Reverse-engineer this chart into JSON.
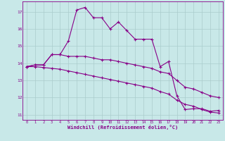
{
  "bg_color": "#c8e8e8",
  "line_color": "#880088",
  "grid_color": "#aacccc",
  "xlabel": "Windchill (Refroidissement éolien,°C)",
  "xlabel_color": "#880088",
  "tick_color": "#880088",
  "ylim": [
    10.7,
    17.6
  ],
  "yticks": [
    11,
    12,
    13,
    14,
    15,
    16,
    17
  ],
  "xlim": [
    -0.5,
    23.5
  ],
  "xticks": [
    0,
    1,
    2,
    3,
    4,
    5,
    6,
    7,
    8,
    9,
    10,
    11,
    12,
    13,
    14,
    15,
    16,
    17,
    18,
    19,
    20,
    21,
    22,
    23
  ],
  "series1_x": [
    0,
    1,
    2,
    3,
    4,
    5,
    6,
    7,
    8,
    9,
    10,
    11,
    12,
    13,
    14,
    15,
    16,
    17,
    18,
    19,
    20,
    21,
    22,
    23
  ],
  "series1_y": [
    13.8,
    13.9,
    13.9,
    14.5,
    14.5,
    15.3,
    17.1,
    17.25,
    16.65,
    16.65,
    16.0,
    16.4,
    15.9,
    15.4,
    15.4,
    15.4,
    13.8,
    14.1,
    12.1,
    11.3,
    11.35,
    11.35,
    11.2,
    11.25
  ],
  "series2_x": [
    0,
    1,
    2,
    3,
    4,
    5,
    6,
    7,
    8,
    9,
    10,
    11,
    12,
    13,
    14,
    15,
    16,
    17,
    18,
    19,
    20,
    21,
    22,
    23
  ],
  "series2_y": [
    13.8,
    13.9,
    13.9,
    14.5,
    14.5,
    14.4,
    14.4,
    14.4,
    14.3,
    14.2,
    14.2,
    14.1,
    14.0,
    13.9,
    13.8,
    13.7,
    13.5,
    13.4,
    13.0,
    12.6,
    12.5,
    12.3,
    12.1,
    12.0
  ],
  "series3_x": [
    0,
    1,
    2,
    3,
    4,
    5,
    6,
    7,
    8,
    9,
    10,
    11,
    12,
    13,
    14,
    15,
    16,
    17,
    18,
    19,
    20,
    21,
    22,
    23
  ],
  "series3_y": [
    13.8,
    13.8,
    13.75,
    13.7,
    13.65,
    13.55,
    13.45,
    13.35,
    13.25,
    13.15,
    13.05,
    12.95,
    12.85,
    12.75,
    12.65,
    12.55,
    12.35,
    12.2,
    11.85,
    11.6,
    11.5,
    11.3,
    11.15,
    11.1
  ]
}
